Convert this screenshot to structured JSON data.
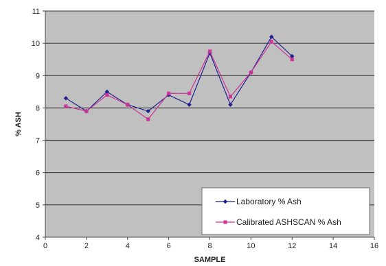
{
  "chart_data": {
    "type": "line",
    "title": "",
    "xlabel": "SAMPLE",
    "ylabel": "% ASH",
    "xlim": [
      0,
      16
    ],
    "ylim": [
      4,
      11
    ],
    "x_ticks": [
      0,
      2,
      4,
      6,
      8,
      10,
      12,
      14,
      16
    ],
    "y_ticks": [
      4,
      5,
      6,
      7,
      8,
      9,
      10,
      11
    ],
    "grid": "horizontal",
    "plot_background": "#c0c0c0",
    "legend_position": "bottom-right",
    "series": [
      {
        "name": "Laboratory % Ash",
        "color": "#1f1f8f",
        "marker": "diamond",
        "x": [
          1,
          2,
          3,
          4,
          5,
          6,
          7,
          8,
          9,
          10,
          11,
          12
        ],
        "y": [
          8.3,
          7.9,
          8.5,
          8.1,
          7.9,
          8.4,
          8.1,
          9.7,
          8.1,
          9.1,
          10.2,
          9.6
        ]
      },
      {
        "name": "Calibrated ASHSCAN % Ash",
        "color": "#cc3399",
        "marker": "square",
        "x": [
          1,
          2,
          3,
          4,
          5,
          6,
          7,
          8,
          9,
          10,
          11,
          12
        ],
        "y": [
          8.05,
          7.9,
          8.4,
          8.1,
          7.65,
          8.45,
          8.45,
          9.75,
          8.35,
          9.1,
          10.05,
          9.5
        ]
      }
    ]
  }
}
